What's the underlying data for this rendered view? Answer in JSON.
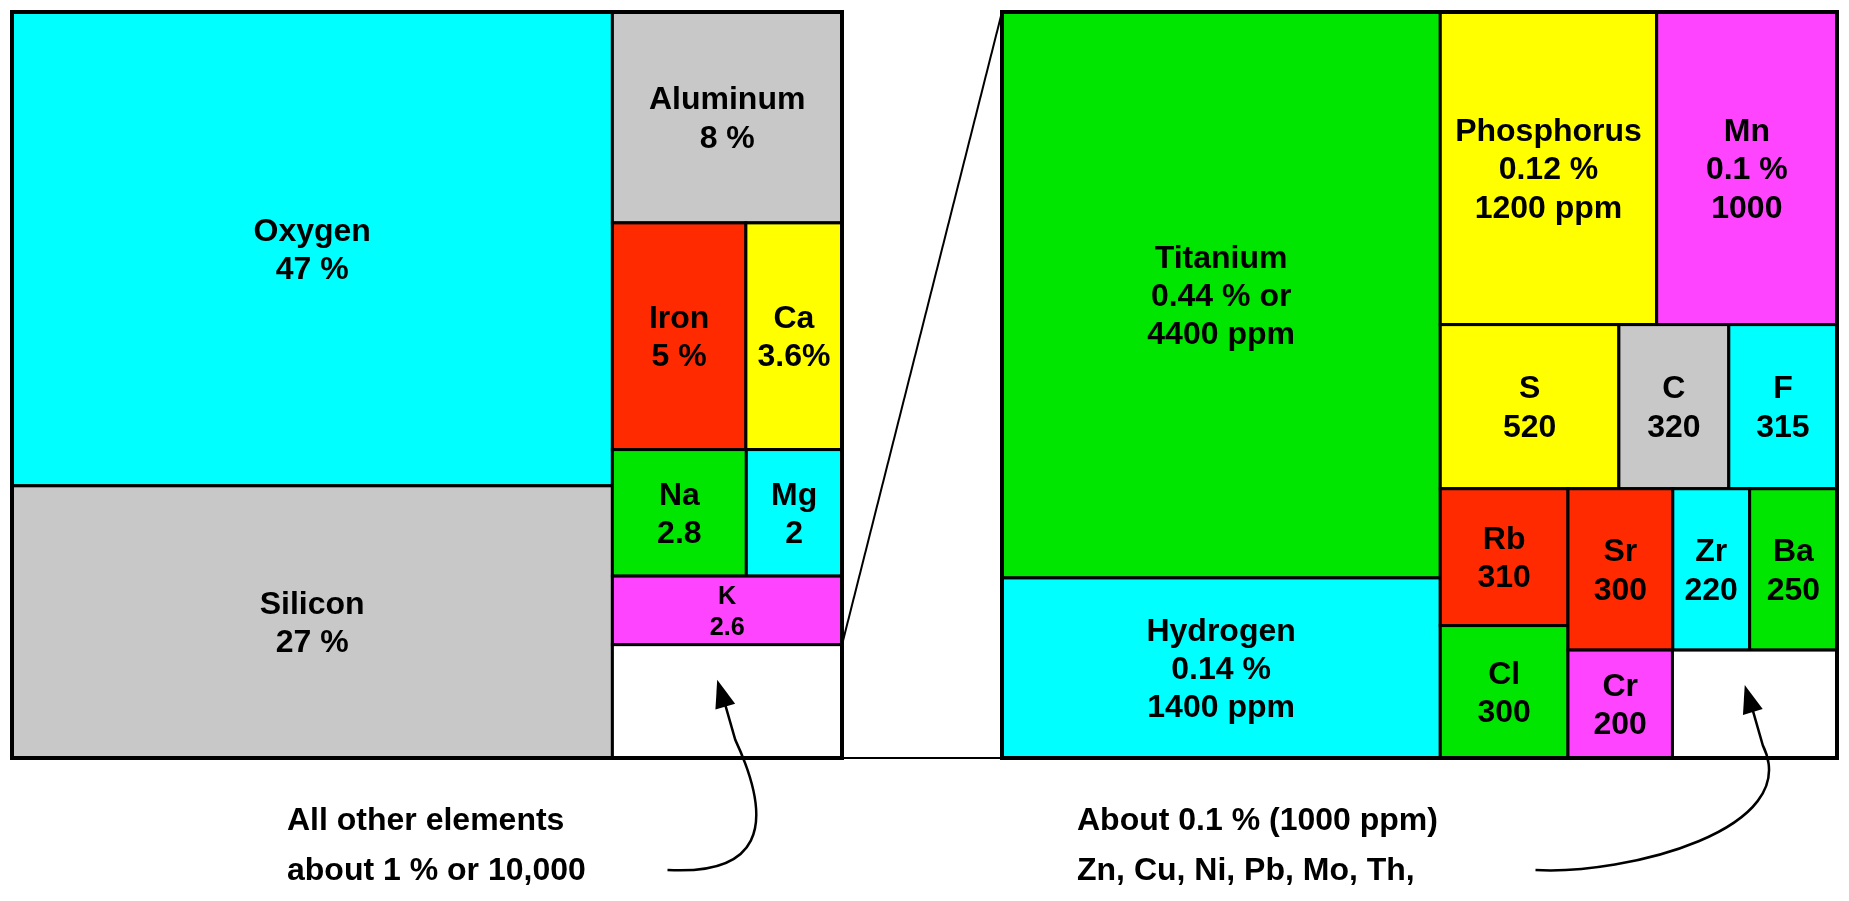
{
  "chart_data": [
    {
      "type": "other",
      "categories": [
        "Oxygen",
        "Silicon",
        "Aluminum",
        "Iron",
        "Ca",
        "Na",
        "Mg",
        "K",
        null
      ],
      "values": [
        47,
        27,
        8,
        5,
        3.6,
        2.8,
        2,
        2.6,
        null
      ],
      "value_labels": [
        "47 %",
        "27 %",
        "8 %",
        "5 %",
        "3.6%",
        "2.8",
        "2",
        "2.6",
        null
      ],
      "colors": [
        "#00ffff",
        "#c8c8c8",
        "#c8c8c8",
        "#ff2a00",
        "#ffff00",
        "#00e600",
        "#00ffff",
        "#ff44ff",
        "#ffffff"
      ],
      "annotations": [
        "All other elements\nabout 1 % or 10,000"
      ]
    },
    {
      "type": "other",
      "categories": [
        "Titanium",
        "Hydrogen",
        "Phosphorus",
        "Mn",
        "S",
        "C",
        "F",
        "Rb",
        "Cl",
        "Sr",
        "Zr",
        "Ba",
        "Cr",
        null
      ],
      "values": [
        4400,
        1400,
        1200,
        1000,
        520,
        320,
        315,
        310,
        300,
        300,
        220,
        250,
        200,
        null
      ],
      "value_labels": [
        "0.44 % or\n4400 ppm",
        "0.14 %\n1400 ppm",
        "0.12 %\n1200 ppm",
        "0.1 %\n1000",
        "520",
        "320",
        "315",
        "310",
        "300",
        "300",
        "220",
        "250",
        "200",
        null
      ],
      "colors": [
        "#00e600",
        "#00ffff",
        "#ffff00",
        "#ff44ff",
        "#ffff00",
        "#c8c8c8",
        "#00ffff",
        "#ff2a00",
        "#00e600",
        "#ff2a00",
        "#00ffff",
        "#00e600",
        "#ff44ff",
        "#ffffff"
      ],
      "annotations": [
        "About 0.1 % (1000 ppm)\nZn, Cu, Ni, Pb, Mo, Th,"
      ]
    }
  ]
}
